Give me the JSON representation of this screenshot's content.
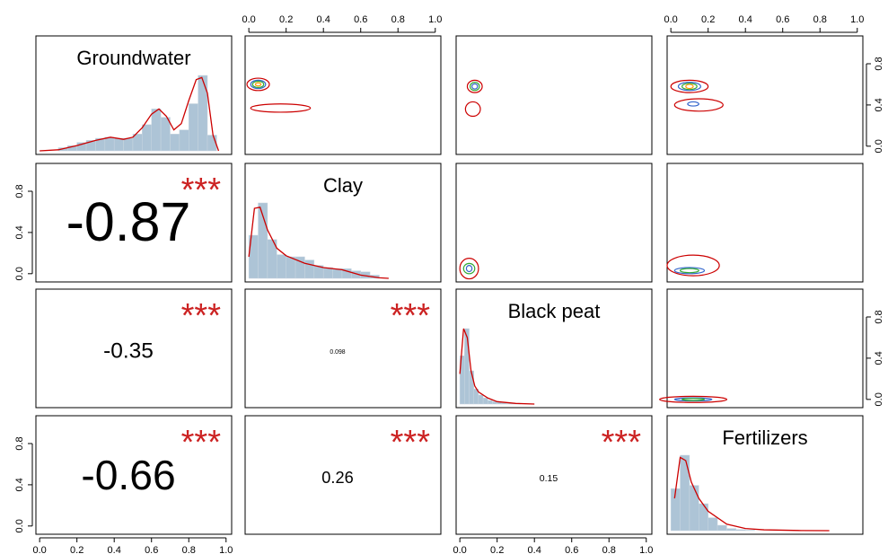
{
  "chart_data": {
    "type": "pairs",
    "variables": [
      "Groundwater",
      "Clay",
      "Black peat",
      "Fertilizers"
    ],
    "xlim": [
      -0.02,
      1.03
    ],
    "ylim": [
      -0.08,
      1.07
    ],
    "xticks": [
      {
        "value": 0,
        "label": "0.0"
      },
      {
        "value": 0.2,
        "label": "0.2"
      },
      {
        "value": 0.4,
        "label": "0.4"
      },
      {
        "value": 0.6,
        "label": "0.6"
      },
      {
        "value": 0.8,
        "label": "0.8"
      },
      {
        "value": 1,
        "label": "1.0"
      }
    ],
    "yticks": [
      {
        "value": 0,
        "label": "0.0"
      },
      {
        "value": 0.4,
        "label": "0.4"
      },
      {
        "value": 0.8,
        "label": "0.8"
      }
    ],
    "correlations": [
      {
        "row": 1,
        "col": 0,
        "value": -0.87,
        "stars": "***"
      },
      {
        "row": 2,
        "col": 0,
        "value": -0.35,
        "stars": "***"
      },
      {
        "row": 3,
        "col": 0,
        "value": -0.66,
        "stars": "***"
      },
      {
        "row": 2,
        "col": 1,
        "value": 0.098,
        "stars": "***"
      },
      {
        "row": 3,
        "col": 1,
        "value": 0.26,
        "stars": "***"
      },
      {
        "row": 3,
        "col": 2,
        "value": 0.15,
        "stars": "***"
      }
    ],
    "histograms": [
      {
        "bins": [
          0,
          0.05,
          0.1,
          0.15,
          0.2,
          0.25,
          0.3,
          0.35,
          0.4,
          0.45,
          0.5,
          0.55,
          0.6,
          0.65,
          0.7,
          0.75,
          0.8,
          0.85,
          0.9,
          0.95,
          1
        ],
        "counts": [
          0,
          0,
          0.3,
          0.5,
          0.8,
          1.0,
          1.2,
          1.3,
          1.2,
          1.2,
          1.6,
          2.5,
          4.0,
          3.2,
          1.6,
          2.0,
          4.5,
          7.2,
          1.5,
          0
        ],
        "density": {
          "x": [
            0,
            0.1,
            0.2,
            0.3,
            0.38,
            0.45,
            0.5,
            0.55,
            0.6,
            0.64,
            0.68,
            0.72,
            0.76,
            0.8,
            0.84,
            0.87,
            0.9,
            0.93,
            0.96
          ],
          "y": [
            0,
            0.1,
            0.5,
            1.0,
            1.3,
            1.1,
            1.3,
            2.2,
            3.5,
            4.0,
            3.3,
            2.0,
            2.6,
            4.8,
            6.8,
            7.0,
            5.5,
            1.5,
            0
          ]
        }
      },
      {
        "bins": [
          0,
          0.05,
          0.1,
          0.15,
          0.2,
          0.25,
          0.3,
          0.35,
          0.4,
          0.45,
          0.5,
          0.55,
          0.6,
          0.65,
          0.7,
          0.75,
          0.8
        ],
        "counts": [
          4.0,
          7.0,
          3.6,
          2.2,
          2.0,
          2.0,
          1.7,
          1.2,
          1.0,
          0.9,
          0.9,
          0.7,
          0.6,
          0.3,
          0,
          0
        ],
        "density": {
          "x": [
            0,
            0.03,
            0.06,
            0.1,
            0.15,
            0.2,
            0.3,
            0.4,
            0.5,
            0.6,
            0.7,
            0.75
          ],
          "y": [
            2,
            6.5,
            6.6,
            4.5,
            2.8,
            2.1,
            1.4,
            1.0,
            0.8,
            0.3,
            0.05,
            0
          ]
        }
      },
      {
        "bins": [
          0,
          0.025,
          0.05,
          0.075,
          0.1,
          0.125,
          0.15,
          0.175,
          0.2,
          0.225,
          0.25,
          0.275,
          0.3,
          0.325,
          0.35,
          0.375
        ],
        "counts": [
          8.0,
          12.5,
          5.5,
          2.5,
          1.5,
          1.0,
          0.6,
          0.4,
          0.3,
          0.2,
          0.1,
          0.1,
          0.05,
          0,
          0
        ],
        "density": {
          "x": [
            0,
            0.02,
            0.04,
            0.06,
            0.08,
            0.1,
            0.15,
            0.2,
            0.3,
            0.4
          ],
          "y": [
            5,
            12.5,
            11,
            5.5,
            3,
            2,
            1,
            0.4,
            0.1,
            0
          ]
        }
      },
      {
        "bins": [
          0,
          0.05,
          0.1,
          0.15,
          0.2,
          0.25,
          0.3,
          0.35,
          0.4,
          0.45
        ],
        "counts": [
          3.9,
          7.0,
          4.2,
          2.5,
          1.2,
          0.5,
          0.2,
          0.1,
          0.05
        ],
        "density": {
          "x": [
            0.02,
            0.05,
            0.08,
            0.11,
            0.15,
            0.2,
            0.3,
            0.4,
            0.5,
            0.7,
            0.85
          ],
          "y": [
            3,
            6.8,
            6.5,
            4.5,
            3,
            1.8,
            0.6,
            0.2,
            0.08,
            0.01,
            0
          ]
        }
      }
    ],
    "contours": [
      {
        "row": 0,
        "col": 1,
        "x": 0.05,
        "y": 0.6,
        "rx": 0.06,
        "ry": 0.06,
        "color": "#cc0000"
      },
      {
        "row": 0,
        "col": 1,
        "x": 0.05,
        "y": 0.6,
        "rx": 0.04,
        "ry": 0.04,
        "color": "#3366cc"
      },
      {
        "row": 0,
        "col": 1,
        "x": 0.05,
        "y": 0.6,
        "rx": 0.03,
        "ry": 0.03,
        "color": "#33aa33"
      },
      {
        "row": 0,
        "col": 1,
        "x": 0.05,
        "y": 0.6,
        "rx": 0.015,
        "ry": 0.015,
        "color": "#ff9900"
      },
      {
        "row": 0,
        "col": 1,
        "x": 0.17,
        "y": 0.37,
        "rx": 0.16,
        "ry": 0.04,
        "color": "#cc0000"
      },
      {
        "row": 0,
        "col": 2,
        "x": 0.08,
        "y": 0.58,
        "rx": 0.04,
        "ry": 0.06,
        "color": "#cc0000"
      },
      {
        "row": 0,
        "col": 2,
        "x": 0.08,
        "y": 0.58,
        "rx": 0.025,
        "ry": 0.04,
        "color": "#33aa33"
      },
      {
        "row": 0,
        "col": 2,
        "x": 0.08,
        "y": 0.58,
        "rx": 0.015,
        "ry": 0.025,
        "color": "#3366cc"
      },
      {
        "row": 0,
        "col": 2,
        "x": 0.07,
        "y": 0.36,
        "rx": 0.04,
        "ry": 0.07,
        "color": "#cc0000"
      },
      {
        "row": 0,
        "col": 3,
        "x": 0.1,
        "y": 0.58,
        "rx": 0.1,
        "ry": 0.06,
        "color": "#cc0000"
      },
      {
        "row": 0,
        "col": 3,
        "x": 0.1,
        "y": 0.58,
        "rx": 0.06,
        "ry": 0.04,
        "color": "#3366cc"
      },
      {
        "row": 0,
        "col": 3,
        "x": 0.1,
        "y": 0.58,
        "rx": 0.04,
        "ry": 0.03,
        "color": "#33aa33"
      },
      {
        "row": 0,
        "col": 3,
        "x": 0.1,
        "y": 0.58,
        "rx": 0.02,
        "ry": 0.02,
        "color": "#ff9900"
      },
      {
        "row": 0,
        "col": 3,
        "x": 0.15,
        "y": 0.4,
        "rx": 0.13,
        "ry": 0.06,
        "color": "#cc0000"
      },
      {
        "row": 0,
        "col": 3,
        "x": 0.12,
        "y": 0.41,
        "rx": 0.03,
        "ry": 0.02,
        "color": "#3366cc"
      },
      {
        "row": 1,
        "col": 2,
        "x": 0.05,
        "y": 0.05,
        "rx": 0.05,
        "ry": 0.1,
        "color": "#cc0000"
      },
      {
        "row": 1,
        "col": 2,
        "x": 0.05,
        "y": 0.05,
        "rx": 0.03,
        "ry": 0.05,
        "color": "#33aa33"
      },
      {
        "row": 1,
        "col": 2,
        "x": 0.05,
        "y": 0.05,
        "rx": 0.015,
        "ry": 0.03,
        "color": "#3366cc"
      },
      {
        "row": 1,
        "col": 3,
        "x": 0.12,
        "y": 0.08,
        "rx": 0.14,
        "ry": 0.1,
        "color": "#cc0000"
      },
      {
        "row": 1,
        "col": 3,
        "x": 0.1,
        "y": 0.03,
        "rx": 0.08,
        "ry": 0.03,
        "color": "#3366cc"
      },
      {
        "row": 1,
        "col": 3,
        "x": 0.1,
        "y": 0.03,
        "rx": 0.05,
        "ry": 0.02,
        "color": "#33aa33"
      },
      {
        "row": 2,
        "col": 3,
        "x": 0.12,
        "y": 0.0,
        "rx": 0.18,
        "ry": 0.03,
        "color": "#cc0000"
      },
      {
        "row": 2,
        "col": 3,
        "x": 0.12,
        "y": 0.0,
        "rx": 0.1,
        "ry": 0.015,
        "color": "#3366cc"
      },
      {
        "row": 2,
        "col": 3,
        "x": 0.12,
        "y": 0.0,
        "rx": 0.06,
        "ry": 0.01,
        "color": "#33aa33"
      }
    ]
  }
}
